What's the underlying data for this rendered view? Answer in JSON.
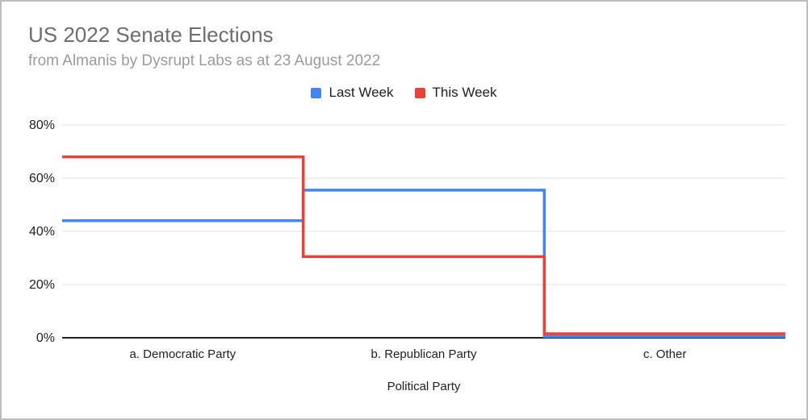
{
  "chart_data": {
    "type": "line",
    "line_style": "step-horizontal",
    "title": "US 2022 Senate Elections",
    "subtitle": "from Almanis by Dysrupt Labs as at 23 August 2022",
    "xlabel": "Political Party",
    "ylabel": "",
    "unit": "%",
    "categories": [
      "a. Democratic Party",
      "b. Republican Party",
      "c. Other"
    ],
    "series": [
      {
        "name": "Last Week",
        "color": "#4285f4",
        "values": [
          44,
          55.5,
          0.5
        ]
      },
      {
        "name": "This Week",
        "color": "#ea4335",
        "values": [
          68,
          30.5,
          1.5
        ]
      }
    ],
    "ylim": [
      0,
      80
    ],
    "yticks": [
      "0%",
      "20%",
      "40%",
      "60%",
      "80%"
    ],
    "grid": true,
    "legend_position": "top"
  }
}
